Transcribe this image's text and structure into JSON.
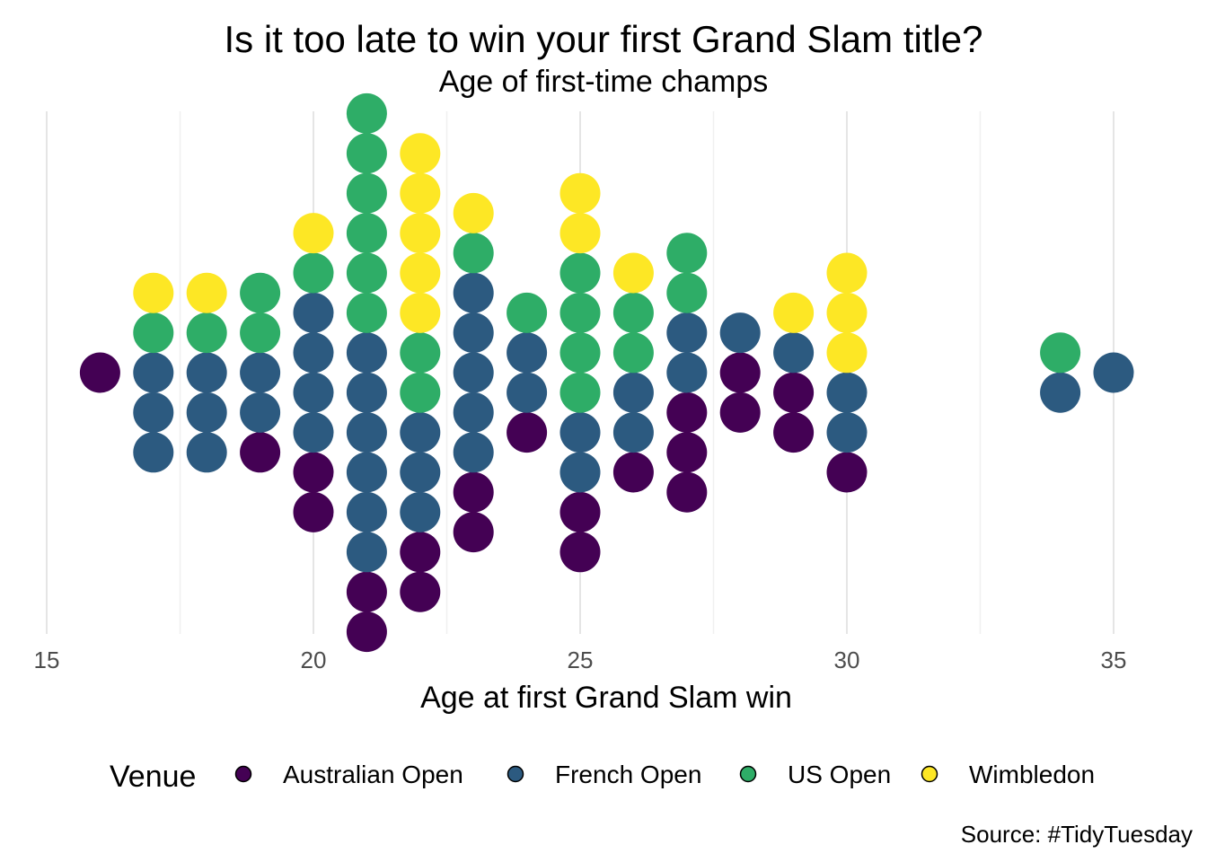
{
  "chart_data": {
    "type": "scatter",
    "subtype": "centered dot plot (beeswarm)",
    "title": "Is it too late to win your first Grand Slam title?",
    "subtitle": "Age of first-time champs",
    "xlabel": "Age at first Grand Slam win",
    "ylabel": "",
    "xlim": [
      15,
      35
    ],
    "xticks": [
      "15",
      "20",
      "25",
      "30",
      "35"
    ],
    "grid": true,
    "legend": {
      "title": "Venue",
      "position": "bottom",
      "entries": [
        "Australian Open",
        "French Open",
        "US Open",
        "Wimbledon"
      ]
    },
    "colors": {
      "Australian Open": "#440154",
      "French Open": "#2C5A80",
      "US Open": "#2EAD67",
      "Wimbledon": "#FDE725"
    },
    "caption": "Source: #TidyTuesday",
    "stacks": [
      {
        "age": 16,
        "venues": [
          "Australian Open"
        ]
      },
      {
        "age": 17,
        "venues": [
          "French Open",
          "French Open",
          "French Open",
          "US Open",
          "Wimbledon"
        ]
      },
      {
        "age": 18,
        "venues": [
          "French Open",
          "French Open",
          "French Open",
          "US Open",
          "Wimbledon"
        ]
      },
      {
        "age": 19,
        "venues": [
          "Australian Open",
          "French Open",
          "French Open",
          "US Open",
          "US Open"
        ]
      },
      {
        "age": 20,
        "venues": [
          "Australian Open",
          "Australian Open",
          "French Open",
          "French Open",
          "French Open",
          "French Open",
          "US Open",
          "Wimbledon"
        ]
      },
      {
        "age": 21,
        "venues": [
          "Australian Open",
          "Australian Open",
          "French Open",
          "French Open",
          "French Open",
          "French Open",
          "French Open",
          "French Open",
          "US Open",
          "US Open",
          "US Open",
          "US Open",
          "US Open",
          "US Open"
        ]
      },
      {
        "age": 22,
        "venues": [
          "Australian Open",
          "Australian Open",
          "French Open",
          "French Open",
          "French Open",
          "US Open",
          "US Open",
          "Wimbledon",
          "Wimbledon",
          "Wimbledon",
          "Wimbledon",
          "Wimbledon"
        ]
      },
      {
        "age": 23,
        "venues": [
          "Australian Open",
          "Australian Open",
          "French Open",
          "French Open",
          "French Open",
          "French Open",
          "French Open",
          "US Open",
          "Wimbledon"
        ]
      },
      {
        "age": 24,
        "venues": [
          "Australian Open",
          "French Open",
          "French Open",
          "US Open"
        ]
      },
      {
        "age": 25,
        "venues": [
          "Australian Open",
          "Australian Open",
          "French Open",
          "French Open",
          "US Open",
          "US Open",
          "US Open",
          "US Open",
          "Wimbledon",
          "Wimbledon"
        ]
      },
      {
        "age": 26,
        "venues": [
          "Australian Open",
          "French Open",
          "French Open",
          "US Open",
          "US Open",
          "Wimbledon"
        ]
      },
      {
        "age": 27,
        "venues": [
          "Australian Open",
          "Australian Open",
          "Australian Open",
          "French Open",
          "French Open",
          "US Open",
          "US Open"
        ]
      },
      {
        "age": 28,
        "venues": [
          "Australian Open",
          "Australian Open",
          "French Open"
        ]
      },
      {
        "age": 29,
        "venues": [
          "Australian Open",
          "Australian Open",
          "French Open",
          "Wimbledon"
        ]
      },
      {
        "age": 30,
        "venues": [
          "Australian Open",
          "French Open",
          "French Open",
          "Wimbledon",
          "Wimbledon",
          "Wimbledon"
        ]
      },
      {
        "age": 34,
        "venues": [
          "French Open",
          "US Open"
        ]
      },
      {
        "age": 35,
        "venues": [
          "French Open"
        ]
      }
    ]
  }
}
